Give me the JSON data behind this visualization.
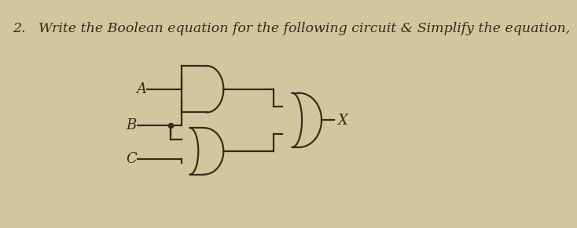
{
  "bg_color": "#d4c5a0",
  "title": "2.   Write the Boolean equation for the following circuit & Simplify the equation,",
  "title_fontsize": 12.5,
  "line_color": "#3a2a1a",
  "line_width": 1.6,
  "label_fontsize": 13,
  "dot_r": 4.5
}
